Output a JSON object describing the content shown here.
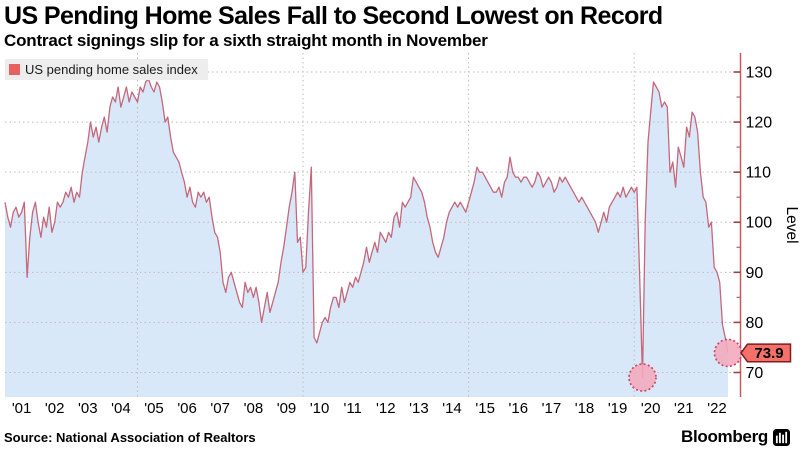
{
  "header": {
    "title": "US Pending Home Sales Fall to Second Lowest on Record",
    "subtitle": "Contract signings slip for a sixth straight month in November"
  },
  "legend": {
    "label": "US pending home sales index",
    "swatch_color": "#e96060"
  },
  "chart_data": {
    "type": "area",
    "title": "US Pending Home Sales Fall to Second Lowest on Record",
    "subtitle": "Contract signings slip for a sixth straight month in November",
    "series_name": "US pending home sales index",
    "frequency": "monthly",
    "x_start": "2001-01",
    "x_end": "2022-11",
    "values": [
      104,
      101,
      99,
      102,
      103,
      101,
      102,
      104,
      89,
      97,
      102,
      104,
      100,
      97,
      101,
      99,
      103,
      98,
      100,
      104,
      103,
      104,
      106,
      105,
      107,
      104,
      106,
      105,
      110,
      113,
      116,
      120,
      117,
      119,
      116,
      119,
      121,
      118,
      123,
      125,
      124,
      127,
      123,
      125,
      127,
      124,
      126,
      125,
      124,
      127,
      126,
      128,
      128.6,
      127,
      126,
      128,
      127,
      124,
      120,
      121,
      117,
      114,
      113,
      112,
      110,
      108,
      105,
      107,
      104,
      103,
      106,
      105,
      106,
      104,
      105,
      101,
      98,
      97,
      94,
      88,
      86,
      89,
      90,
      88,
      86,
      84,
      83,
      88,
      86,
      87,
      85,
      87,
      84,
      80,
      83,
      86,
      82,
      84,
      86,
      88,
      92,
      95,
      99,
      103,
      106,
      110,
      96,
      97,
      90,
      91,
      102,
      111,
      77,
      75.9,
      78,
      80,
      81,
      80,
      83,
      85,
      85,
      83,
      87,
      84,
      86,
      88,
      87,
      89,
      88,
      90,
      92,
      95,
      92,
      94,
      96,
      94,
      98,
      97,
      96,
      98,
      97,
      101,
      102,
      99,
      104,
      103,
      104,
      105,
      109,
      108,
      107,
      106,
      104,
      101,
      99,
      96,
      94,
      93,
      95,
      97,
      100,
      102,
      103,
      104,
      103,
      104,
      103,
      102,
      104,
      106,
      108,
      111,
      110,
      110,
      109,
      108,
      107,
      106,
      106,
      107,
      105,
      108,
      109,
      113,
      110,
      109,
      109,
      108,
      109,
      109,
      108,
      107,
      108,
      110,
      109,
      107,
      108,
      109,
      108,
      106,
      107,
      109,
      108,
      109,
      108,
      107,
      106,
      105,
      104,
      105,
      104,
      103,
      102,
      101,
      100,
      98,
      100,
      102,
      100,
      103,
      104,
      105,
      106,
      105,
      107,
      105,
      106,
      107,
      106,
      107,
      89,
      69,
      100,
      116,
      122,
      128,
      127,
      126,
      123,
      124,
      123,
      110,
      112,
      107,
      115,
      113,
      111,
      119,
      117,
      122,
      121,
      118,
      110,
      105,
      104,
      99,
      100,
      91,
      90,
      88,
      79.5,
      77,
      73.9
    ],
    "x_tick_labels": [
      "'01",
      "'02",
      "'03",
      "'04",
      "'05",
      "'06",
      "'07",
      "'08",
      "'09",
      "'10",
      "'11",
      "'12",
      "'13",
      "'14",
      "'15",
      "'16",
      "'17",
      "'18",
      "'19",
      "'20",
      "'21",
      "'22"
    ],
    "y_ticks": [
      70,
      80,
      90,
      100,
      110,
      120,
      130
    ],
    "y_minor_ticks": [
      75,
      85,
      95,
      105,
      115,
      125
    ],
    "ylim": [
      65.5,
      133.8
    ],
    "ylabel": "Level",
    "grid_month_indices": [
      48,
      108,
      168,
      228
    ],
    "last_value_label": "73.9",
    "annotations": [
      {
        "type": "circle",
        "name": "covid-low-marker",
        "month_index": 231,
        "value": 69
      },
      {
        "type": "circle",
        "name": "latest-point-marker",
        "month_index": 262,
        "value": 73.9
      }
    ],
    "colors": {
      "line": "#c4687a",
      "fill": "#d9e8f9",
      "axis": "#c25b5b",
      "tick": "#a63f3f",
      "grid": "#bdbdbd",
      "circle_fill": "#f3abbe",
      "circle_stroke": "#c84a64",
      "tag_fill": "#f4716a",
      "tag_stroke": "#7e1d1d",
      "tag_text": "#000000"
    }
  },
  "footer": {
    "source": "Source: National Association of Realtors",
    "brand": "Bloomberg"
  }
}
